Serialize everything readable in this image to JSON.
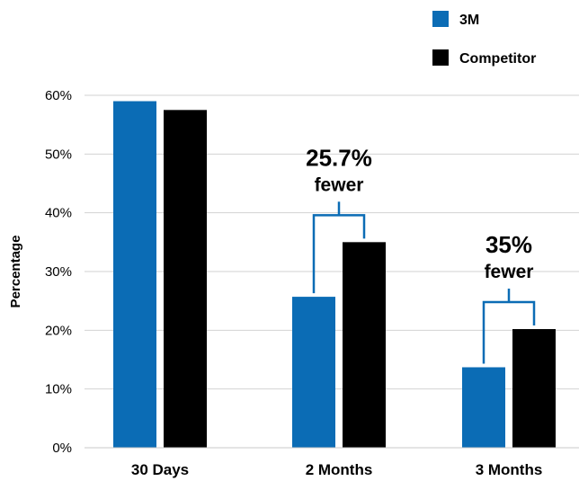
{
  "chart_data": {
    "type": "bar",
    "categories": [
      "30 Days",
      "2 Months",
      "3 Months"
    ],
    "series": [
      {
        "name": "3M",
        "values": [
          59,
          25.7,
          13.7
        ],
        "color": "#0b6cb5"
      },
      {
        "name": "Competitor",
        "values": [
          57.5,
          35,
          20.2
        ],
        "color": "#000000"
      }
    ],
    "ylabel": "Percentage",
    "ylim": [
      0,
      60
    ],
    "yticks": [
      "0%",
      "10%",
      "20%",
      "30%",
      "40%",
      "50%",
      "60%"
    ],
    "grid": true,
    "legend_position": "top-right",
    "annotations": [
      {
        "category": "2 Months",
        "value": "25.7%",
        "text": "fewer"
      },
      {
        "category": "3 Months",
        "value": "35%",
        "text": "fewer"
      }
    ],
    "bracket_color": "#0b6cb5"
  }
}
